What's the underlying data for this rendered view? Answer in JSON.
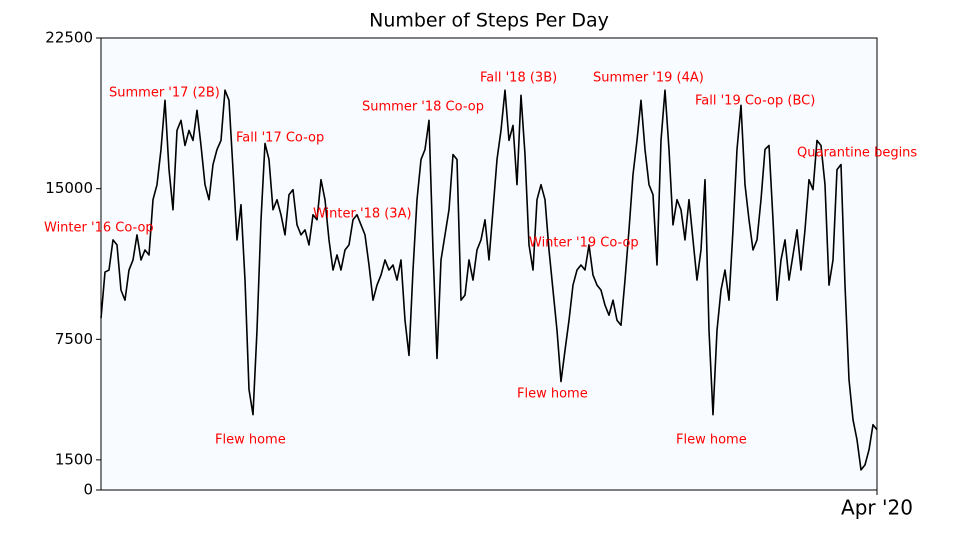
{
  "chart_data": {
    "type": "line",
    "title": "Number of Steps Per Day",
    "color": "#000000",
    "annotation_color": "#ff0000",
    "ylim": [
      0,
      22500
    ],
    "yticks": [
      0,
      1500,
      7500,
      15000,
      22500
    ],
    "annotations": [
      "Winter '16 Co-op",
      "Summer '17 (2B)",
      "Fall '17 Co-op",
      "Flew home",
      "Winter '18 (3A)",
      "Summer '18 Co-op",
      "Fall '18 (3B)",
      "Flew home",
      "Winter '19 Co-op",
      "Summer '19 (4A)",
      "Fall '19 Co-op (BC)",
      "Flew home",
      "Quarantine begins"
    ],
    "categories": [
      null,
      null,
      null,
      null,
      null,
      null,
      null,
      null,
      null,
      null,
      null,
      null,
      null,
      null,
      null,
      null,
      null,
      null,
      null,
      null,
      null,
      null,
      null,
      null,
      null,
      null,
      null,
      null,
      null,
      null,
      null,
      null,
      null,
      null,
      null,
      null,
      null,
      null,
      null,
      null,
      null,
      null,
      null,
      null,
      null,
      null,
      null,
      null,
      null,
      null,
      null,
      null,
      null,
      null,
      null,
      null,
      null,
      null,
      null,
      null,
      null,
      null,
      null,
      null,
      null,
      null,
      null,
      null,
      null,
      null,
      null,
      null,
      null,
      null,
      null,
      null,
      null,
      null,
      null,
      null,
      null,
      null,
      null,
      null,
      null,
      null,
      null,
      null,
      null,
      null,
      null,
      null,
      null,
      null,
      null,
      null,
      null,
      null,
      null,
      null,
      null,
      null,
      null,
      null,
      null,
      null,
      null,
      null,
      null,
      null,
      null,
      null,
      null,
      null,
      null,
      null,
      null,
      null,
      null,
      null,
      null,
      null,
      null,
      null,
      null,
      null,
      null,
      null,
      null,
      null,
      null,
      null,
      null,
      null,
      null,
      null,
      null,
      null,
      null,
      null,
      null,
      null,
      null,
      null,
      null,
      null,
      null,
      null,
      null,
      null,
      null,
      null,
      null,
      null,
      null,
      null,
      null,
      null,
      null,
      null,
      null,
      null,
      null,
      null,
      null,
      null,
      null,
      null,
      null,
      null,
      null,
      null,
      null,
      null,
      null,
      null,
      null,
      null,
      null,
      null,
      null,
      null,
      null,
      null,
      null,
      null,
      null,
      null,
      null,
      null,
      null,
      null,
      null,
      null,
      "Apr '20"
    ],
    "values": [
      8550,
      10850,
      10950,
      12450,
      12200,
      9950,
      9450,
      10950,
      11450,
      12700,
      11450,
      11950,
      11700,
      14450,
      15200,
      16950,
      19400,
      15950,
      13950,
      17900,
      18400,
      17150,
      17900,
      17400,
      18900,
      17150,
      15200,
      14450,
      16200,
      16950,
      17400,
      19900,
      19400,
      15950,
      12450,
      14200,
      10450,
      5000,
      3750,
      7950,
      13450,
      17250,
      16450,
      13950,
      14450,
      13700,
      12700,
      14700,
      14950,
      13200,
      12700,
      12950,
      12200,
      13700,
      13450,
      15450,
      14450,
      12450,
      10950,
      11700,
      10950,
      11950,
      12200,
      13450,
      13700,
      13200,
      12700,
      11200,
      9450,
      10200,
      10700,
      11450,
      10950,
      11200,
      10450,
      11450,
      8450,
      6700,
      10950,
      14450,
      16450,
      16950,
      18400,
      11950,
      6550,
      11450,
      12700,
      13950,
      16700,
      16450,
      9450,
      9700,
      11450,
      10450,
      11950,
      12450,
      13450,
      11450,
      13950,
      16450,
      17900,
      19900,
      17400,
      18150,
      15200,
      19650,
      16700,
      12200,
      10950,
      14450,
      15200,
      14450,
      11950,
      9950,
      7950,
      5400,
      6950,
      8450,
      10200,
      10950,
      11200,
      10950,
      12200,
      10700,
      10200,
      9950,
      9200,
      8700,
      9450,
      8450,
      8200,
      10450,
      12950,
      15700,
      17400,
      19400,
      16950,
      15200,
      14700,
      11200,
      17400,
      19900,
      16950,
      13200,
      14450,
      13950,
      12450,
      14450,
      12450,
      10450,
      11950,
      15450,
      7950,
      3750,
      7950,
      9950,
      10950,
      9450,
      12950,
      16950,
      19150,
      15200,
      13450,
      11950,
      12450,
      14450,
      16950,
      17150,
      13450,
      9450,
      11450,
      12450,
      10450,
      11700,
      12950,
      10950,
      12950,
      15450,
      14950,
      17400,
      17150,
      15200,
      10200,
      11450,
      15950,
      16200,
      10200,
      5500,
      3500,
      2500,
      1000,
      1250,
      2000,
      3250,
      3000
    ]
  }
}
